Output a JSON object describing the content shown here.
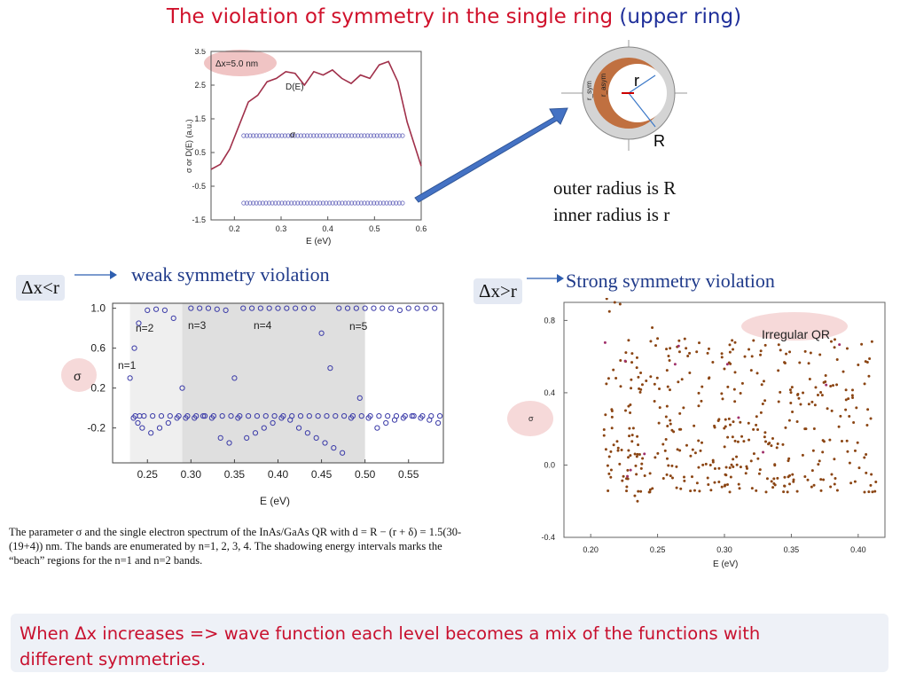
{
  "title": {
    "red": "The violation of symmetry in the single ring",
    "blue": "(upper ring)"
  },
  "top_chart": {
    "badge": "Δx=5.0 nm",
    "curve_label": "D(E)",
    "sigma_label": "σ",
    "ylabel": "σ or D(E) (a.u.)",
    "xlabel": "E (eV)",
    "yticks": [
      "3.5",
      "2.5",
      "1.5",
      "0.5",
      "-0.5",
      "-1.5"
    ],
    "xticks": [
      "0.2",
      "0.3",
      "0.4",
      "0.5",
      "0.6"
    ]
  },
  "ring_diagram": {
    "label_r": "r",
    "label_R": "R",
    "label_rsym": "r_sym",
    "label_rasym": "r_asym"
  },
  "radius_text": {
    "line1": "outer radius is R",
    "line2": "inner radius is r"
  },
  "left_section": {
    "condition": "Δx<r",
    "heading": "weak symmetry violation",
    "ylabel": "σ",
    "xlabel": "E (eV)",
    "yticks": [
      "1.0",
      "0.6",
      "0.2",
      "-0.2"
    ],
    "xticks": [
      "0.25",
      "0.30",
      "0.35",
      "0.40",
      "0.45",
      "0.50",
      "0.55"
    ],
    "band_labels": [
      "n=2",
      "n=3",
      "n=4",
      "n=5",
      "n=1"
    ]
  },
  "caption": {
    "line1": "The parameter σ and the single electron spectrum of the InAs/GaAs QR with d = R − (r + δ) = 1.5(30-",
    "line2": "(19+4)) nm. The bands are enumerated by n=1, 2, 3, 4. The shadowing energy intervals marks the",
    "line3": "“beach” regions for the n=1 and n=2 bands."
  },
  "right_section": {
    "condition": "Δx>r",
    "heading": "Strong symmetry violation",
    "badge": "Irregular QR",
    "ylabel": "σ",
    "xlabel": "E (eV)",
    "yticks": [
      "0.8",
      "0.4",
      "0.0",
      "-0.4"
    ],
    "xticks": [
      "0.20",
      "0.25",
      "0.30",
      "0.35",
      "0.40"
    ]
  },
  "bottom_note": {
    "line1": "When  Δx  increases =>  wave function each level becomes  a mix of the functions with",
    "line2": "different symmetries."
  },
  "colors": {
    "title_red": "#d0112b",
    "title_blue": "#1f2f9a",
    "arrow_blue": "#4472c4",
    "curve_maroon": "#a0304a",
    "marker_blue": "#3b3ba8",
    "dot_brown": "#8b4513"
  },
  "chart_data": [
    {
      "type": "scatter",
      "title": "",
      "xlabel": "E (eV)",
      "ylabel": "σ or D(E) (a.u.)",
      "xlim": [
        0.15,
        0.6
      ],
      "ylim": [
        -1.5,
        3.5
      ],
      "series": [
        {
          "name": "D(E)",
          "kind": "line",
          "x": [
            0.15,
            0.17,
            0.19,
            0.21,
            0.23,
            0.25,
            0.27,
            0.29,
            0.31,
            0.33,
            0.35,
            0.37,
            0.39,
            0.41,
            0.43,
            0.45,
            0.47,
            0.49,
            0.51,
            0.53,
            0.55,
            0.57,
            0.6
          ],
          "y": [
            0.0,
            0.15,
            0.6,
            1.3,
            2.0,
            2.2,
            2.6,
            2.7,
            2.9,
            2.85,
            2.5,
            2.9,
            2.8,
            2.95,
            2.7,
            2.55,
            2.8,
            2.7,
            3.1,
            3.2,
            2.6,
            1.4,
            0.1
          ]
        },
        {
          "name": "σ",
          "kind": "markers",
          "x": [
            0.22,
            0.24,
            0.26,
            0.28,
            0.3,
            0.32,
            0.34,
            0.36,
            0.38,
            0.4,
            0.42,
            0.44,
            0.46,
            0.48,
            0.5,
            0.52,
            0.54,
            0.56
          ],
          "y_upper": 1.0,
          "y_lower": -1.0
        }
      ]
    },
    {
      "type": "scatter",
      "title": "",
      "xlabel": "E (eV)",
      "ylabel": "σ",
      "xlim": [
        0.21,
        0.59
      ],
      "ylim": [
        -0.55,
        1.05
      ],
      "shaded_regions": [
        [
          0.23,
          0.29
        ],
        [
          0.29,
          0.5
        ]
      ],
      "series": [
        {
          "name": "",
          "x": [
            0.23,
            0.235,
            0.24,
            0.25,
            0.26,
            0.27,
            0.28,
            0.29,
            0.3,
            0.31,
            0.32,
            0.33,
            0.34,
            0.35,
            0.36,
            0.37,
            0.38,
            0.39,
            0.4,
            0.41,
            0.42,
            0.43,
            0.44,
            0.45,
            0.46,
            0.47,
            0.48,
            0.49,
            0.5,
            0.51,
            0.52,
            0.53,
            0.54,
            0.55,
            0.56,
            0.57,
            0.58
          ],
          "y_top": [
            0.3,
            0.6,
            0.85,
            0.98,
            0.99,
            0.98,
            0.9,
            0.2,
            1.0,
            1.0,
            1.0,
            0.99,
            0.98,
            0.3,
            1.0,
            1.0,
            1.0,
            1.0,
            1.0,
            1.0,
            1.0,
            1.0,
            1.0,
            0.75,
            0.4,
            1.0,
            1.0,
            1.0,
            1.0,
            1.0,
            1.0,
            1.0,
            0.98,
            1.0,
            1.0,
            1.0,
            1.0
          ],
          "y_mid": [
            -0.1,
            -0.15,
            -0.2,
            -0.25,
            -0.2,
            -0.15,
            -0.1,
            -0.1,
            -0.1,
            -0.08,
            -0.1,
            -0.3,
            -0.35,
            -0.1,
            -0.3,
            -0.25,
            -0.2,
            -0.15,
            -0.1,
            -0.12,
            -0.2,
            -0.25,
            -0.3,
            -0.35,
            -0.4,
            -0.45,
            -0.1,
            0.1,
            -0.1,
            -0.2,
            -0.15,
            -0.12,
            -0.1,
            -0.08,
            -0.1,
            -0.12,
            -0.15
          ]
        }
      ]
    },
    {
      "type": "scatter",
      "title": "",
      "xlabel": "E (eV)",
      "ylabel": "σ",
      "xlim": [
        0.18,
        0.42
      ],
      "ylim": [
        -0.4,
        0.9
      ],
      "series": [
        {
          "name": "",
          "x_range": [
            0.21,
            0.415
          ],
          "y_range": [
            -0.22,
            0.92
          ],
          "count": 420
        }
      ]
    }
  ]
}
